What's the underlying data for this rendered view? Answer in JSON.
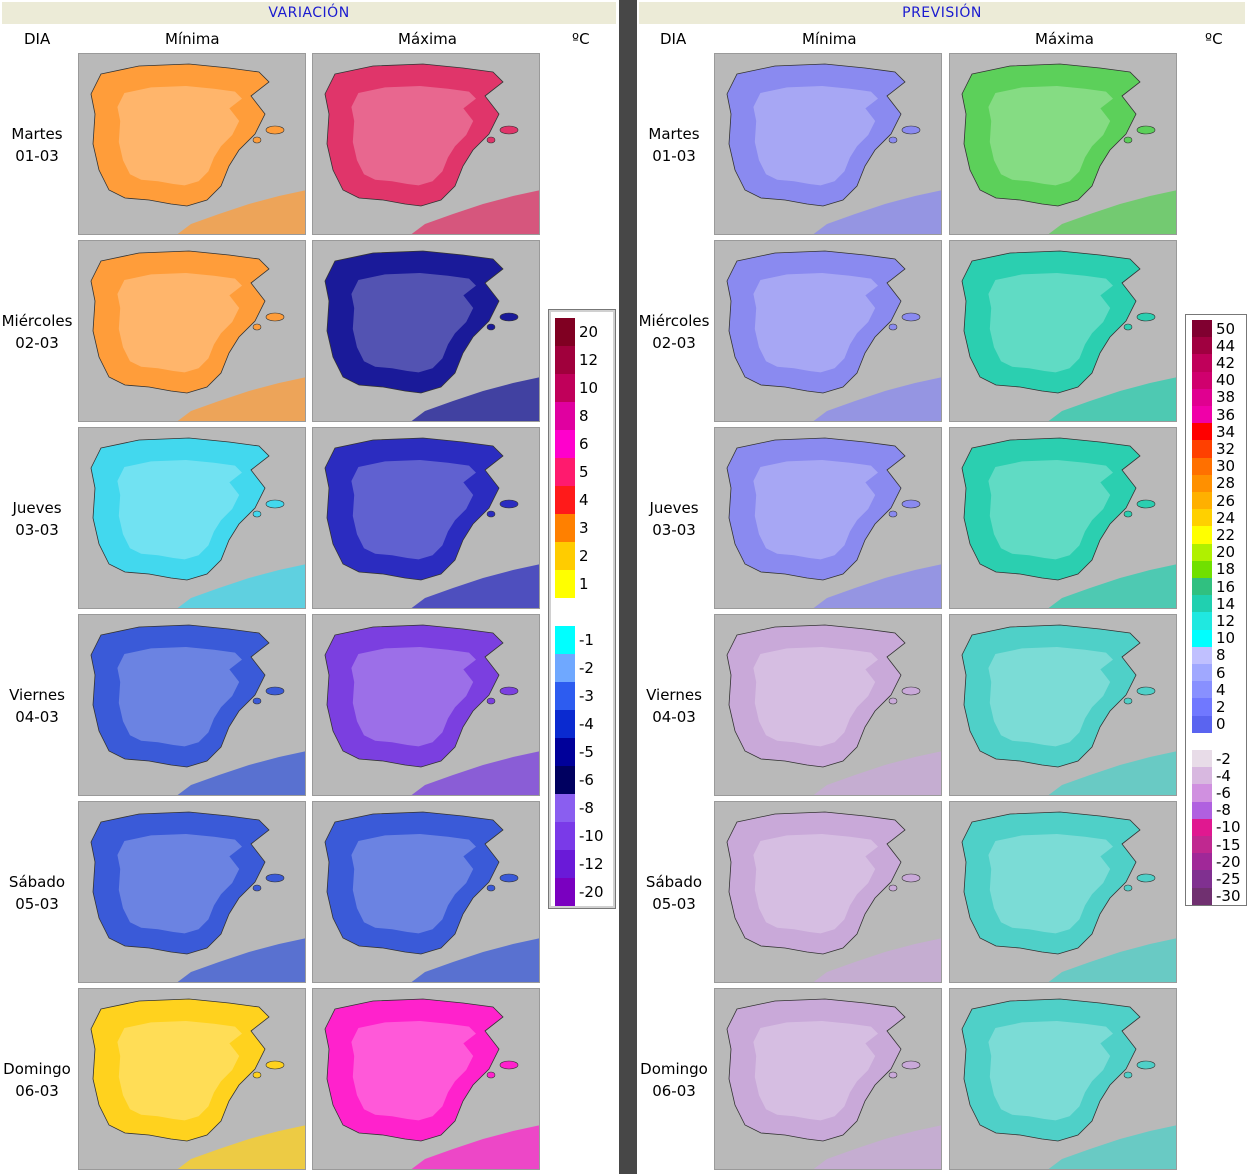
{
  "sections": {
    "variacion": {
      "title": "VARIACIÓN"
    },
    "prevision": {
      "title": "PREVISIÓN"
    }
  },
  "columns": {
    "dia": "DIA",
    "minima": "Mínima",
    "maxima": "Máxima",
    "unit": "ºC"
  },
  "days": [
    {
      "name": "Martes",
      "date": "01-03"
    },
    {
      "name": "Miércoles",
      "date": "02-03"
    },
    {
      "name": "Jueves",
      "date": "03-03"
    },
    {
      "name": "Viernes",
      "date": "04-03"
    },
    {
      "name": "Sábado",
      "date": "05-03"
    },
    {
      "name": "Domingo",
      "date": "06-03"
    }
  ],
  "map_styles": {
    "variacion_minima": [
      "#ff9d3a",
      "#ff9d3a",
      "#42d8ee",
      "#3a5ad8",
      "#3a5ad8",
      "#ffd21e"
    ],
    "variacion_maxima": [
      "#e0356a",
      "#1a1a99",
      "#2b2cc0",
      "#7b3fe0",
      "#3a5ad8",
      "#ff22cc"
    ],
    "prevision_minima": [
      "#8a8af0",
      "#8a8af0",
      "#8a8af0",
      "#c9a9d9",
      "#c9a9d9",
      "#c9a9d9"
    ],
    "prevision_maxima": [
      "#5cd05a",
      "#2bcfb0",
      "#2bcfb0",
      "#4fd0c8",
      "#4fd0c8",
      "#4fd0c8"
    ]
  },
  "legend_variacion": {
    "entries": [
      {
        "label": "20",
        "color": "#800022"
      },
      {
        "label": "12",
        "color": "#a0003c"
      },
      {
        "label": "10",
        "color": "#c0005a"
      },
      {
        "label": "8",
        "color": "#e000a0"
      },
      {
        "label": "6",
        "color": "#ff00cc"
      },
      {
        "label": "5",
        "color": "#ff1a6e"
      },
      {
        "label": "4",
        "color": "#ff1a1a"
      },
      {
        "label": "3",
        "color": "#ff8000"
      },
      {
        "label": "2",
        "color": "#ffcc00"
      },
      {
        "label": "1",
        "color": "#ffff00"
      },
      {
        "label": "",
        "color": "#ffffff"
      },
      {
        "label": "-1",
        "color": "#00ffff"
      },
      {
        "label": "-2",
        "color": "#6fa8ff"
      },
      {
        "label": "-3",
        "color": "#2d5cf0"
      },
      {
        "label": "-4",
        "color": "#0a2ad0"
      },
      {
        "label": "-5",
        "color": "#00009a"
      },
      {
        "label": "-6",
        "color": "#000060"
      },
      {
        "label": "-8",
        "color": "#8a5ef0"
      },
      {
        "label": "-10",
        "color": "#7a3ae8"
      },
      {
        "label": "-12",
        "color": "#6a1ad8"
      },
      {
        "label": "-20",
        "color": "#7a00c0"
      }
    ]
  },
  "legend_prevision": {
    "entries": [
      {
        "label": "50",
        "color": "#800030"
      },
      {
        "label": "44",
        "color": "#a00040"
      },
      {
        "label": "42",
        "color": "#c0005a"
      },
      {
        "label": "40",
        "color": "#d0006e"
      },
      {
        "label": "38",
        "color": "#e00090"
      },
      {
        "label": "36",
        "color": "#f000a8"
      },
      {
        "label": "34",
        "color": "#ff0000"
      },
      {
        "label": "32",
        "color": "#ff4000"
      },
      {
        "label": "30",
        "color": "#ff7000"
      },
      {
        "label": "28",
        "color": "#ff9000"
      },
      {
        "label": "26",
        "color": "#ffb000"
      },
      {
        "label": "24",
        "color": "#ffd000"
      },
      {
        "label": "22",
        "color": "#ffff00"
      },
      {
        "label": "20",
        "color": "#b0f000"
      },
      {
        "label": "18",
        "color": "#70e000"
      },
      {
        "label": "16",
        "color": "#30c080"
      },
      {
        "label": "14",
        "color": "#20d0b0"
      },
      {
        "label": "12",
        "color": "#20e8e0"
      },
      {
        "label": "10",
        "color": "#00ffff"
      },
      {
        "label": "8",
        "color": "#c0c0ff"
      },
      {
        "label": "6",
        "color": "#a0a8ff"
      },
      {
        "label": "4",
        "color": "#8890ff"
      },
      {
        "label": "2",
        "color": "#7078ff"
      },
      {
        "label": "0",
        "color": "#5a64f0"
      },
      {
        "label": "",
        "color": "#ffffff"
      },
      {
        "label": "-2",
        "color": "#e8dce8"
      },
      {
        "label": "-4",
        "color": "#d8b8e0"
      },
      {
        "label": "-6",
        "color": "#d090e0"
      },
      {
        "label": "-8",
        "color": "#b060e0"
      },
      {
        "label": "-10",
        "color": "#e01890"
      },
      {
        "label": "-15",
        "color": "#c02890"
      },
      {
        "label": "-20",
        "color": "#a02898"
      },
      {
        "label": "-25",
        "color": "#803090"
      },
      {
        "label": "-30",
        "color": "#703070"
      }
    ]
  }
}
